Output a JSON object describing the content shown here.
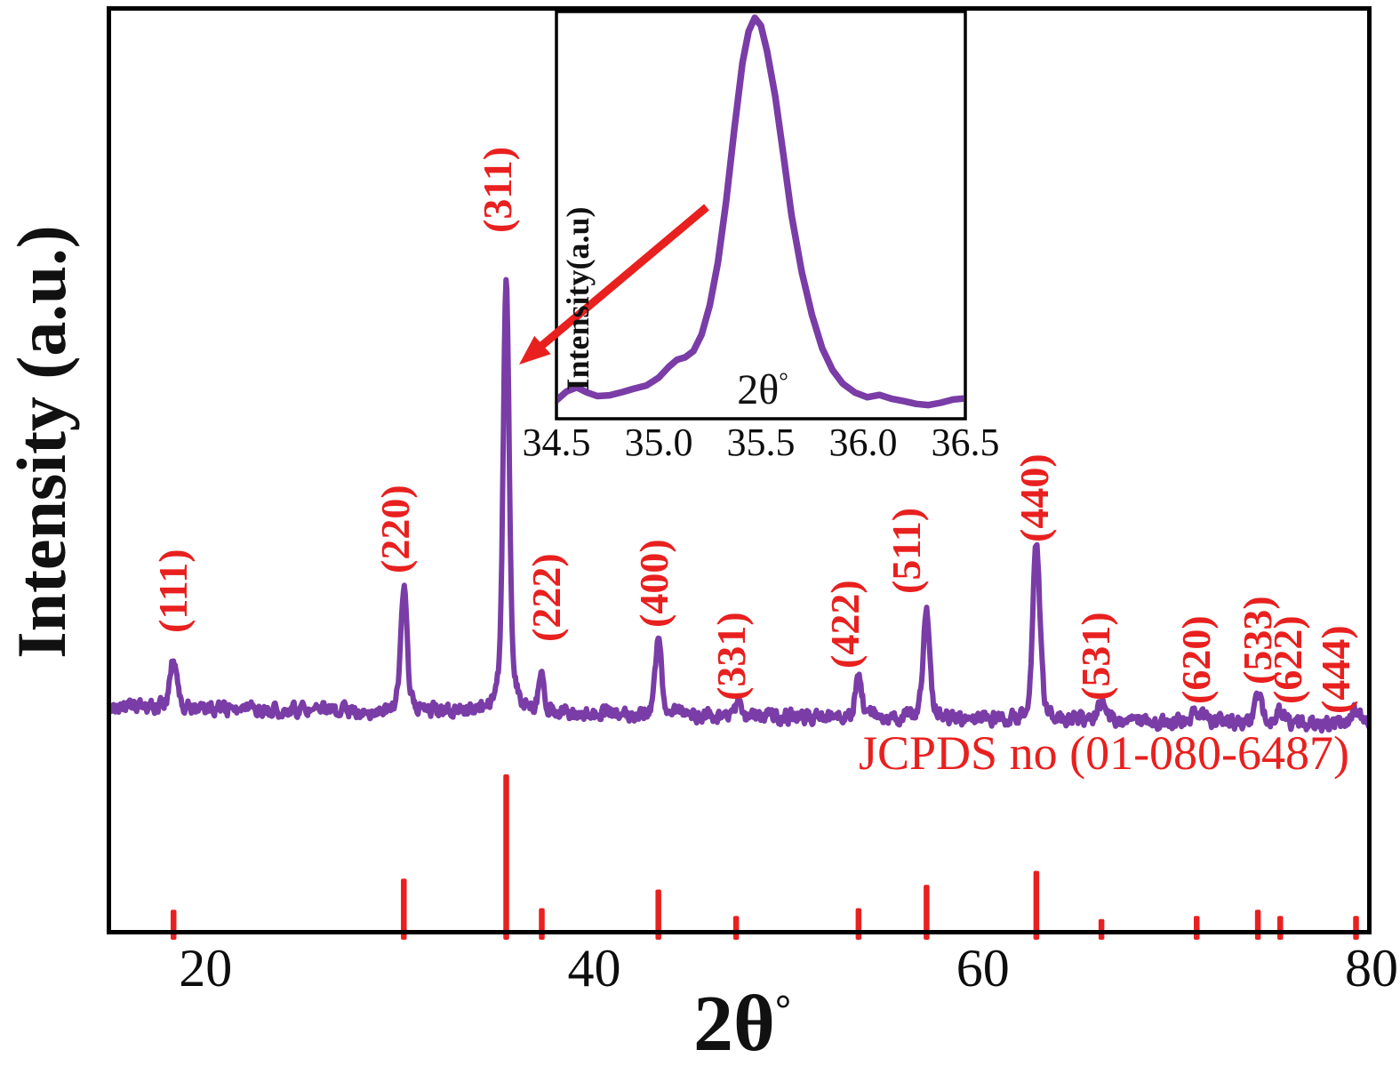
{
  "chart_data": {
    "type": "line",
    "description": "XRD powder diffraction pattern with indexed spinel peaks and JCPDS reference stick pattern",
    "ylabel": "Intensity (a.u.)",
    "xlabel": "2θ",
    "degree": "°",
    "x_range": [
      15,
      80
    ],
    "grid": false,
    "x_ticks": [
      {
        "value": 20,
        "label": "20"
      },
      {
        "value": 40,
        "label": "40"
      },
      {
        "value": 60,
        "label": "60"
      },
      {
        "value": 80,
        "label": "80"
      }
    ],
    "reference_label": "JCPDS no (01-080-6487)",
    "colors": {
      "trace": "#7a3ca6",
      "reference": "#e8201f",
      "frame": "#000000"
    },
    "peaks": [
      {
        "hkl": "(111)",
        "two_theta": 18.35,
        "sample_intensity": 11.5,
        "ref_intensity": 13
      },
      {
        "hkl": "(220)",
        "two_theta": 30.2,
        "sample_intensity": 28.0,
        "ref_intensity": 33
      },
      {
        "hkl": "(311)",
        "two_theta": 35.47,
        "sample_intensity": 100.0,
        "ref_intensity": 100
      },
      {
        "hkl": "(222)",
        "two_theta": 37.3,
        "sample_intensity": 9.5,
        "ref_intensity": 14
      },
      {
        "hkl": "(400)",
        "two_theta": 43.3,
        "sample_intensity": 17.5,
        "ref_intensity": 26
      },
      {
        "hkl": "(331)",
        "two_theta": 47.3,
        "sample_intensity": 2.5,
        "ref_intensity": 9
      },
      {
        "hkl": "(422)",
        "two_theta": 53.6,
        "sample_intensity": 10.0,
        "ref_intensity": 14
      },
      {
        "hkl": "(511)",
        "two_theta": 57.1,
        "sample_intensity": 25.0,
        "ref_intensity": 29
      },
      {
        "hkl": "(440)",
        "two_theta": 62.75,
        "sample_intensity": 40.0,
        "ref_intensity": 38
      },
      {
        "hkl": "(531)",
        "two_theta": 66.1,
        "sample_intensity": 4.0,
        "ref_intensity": 7
      },
      {
        "hkl": "(620)",
        "two_theta": 71.0,
        "sample_intensity": 2.5,
        "ref_intensity": 9
      },
      {
        "hkl": "(533)",
        "two_theta": 74.15,
        "sample_intensity": 7.0,
        "ref_intensity": 13
      },
      {
        "hkl": "(622)",
        "two_theta": 75.3,
        "sample_intensity": 3.2,
        "ref_intensity": 9
      },
      {
        "hkl": "(444)",
        "two_theta": 79.2,
        "sample_intensity": 3.0,
        "ref_intensity": 9
      }
    ],
    "inset": {
      "magnified_peak": "(311)",
      "ylabel": "Intensity(a.u)",
      "xlabel": "2θ",
      "degree": "°",
      "x_range": [
        34.5,
        36.5
      ],
      "x_ticks": [
        {
          "value": 34.5,
          "label": "34.5"
        },
        {
          "value": 35.0,
          "label": "35.0"
        },
        {
          "value": 35.5,
          "label": "35.5"
        },
        {
          "value": 36.0,
          "label": "36.0"
        },
        {
          "value": 36.5,
          "label": "36.5"
        }
      ],
      "curve": {
        "x": [
          34.5,
          34.55,
          34.6,
          34.65,
          34.7,
          34.76,
          34.82,
          34.88,
          34.94,
          35.0,
          35.05,
          35.09,
          35.13,
          35.17,
          35.21,
          35.25,
          35.29,
          35.33,
          35.37,
          35.41,
          35.44,
          35.47,
          35.5,
          35.53,
          35.57,
          35.61,
          35.65,
          35.7,
          35.75,
          35.8,
          35.85,
          35.9,
          35.96,
          36.02,
          36.08,
          36.14,
          36.2,
          36.26,
          36.32,
          36.38,
          36.44,
          36.5
        ],
        "y": [
          2.2,
          4.5,
          5.5,
          4.2,
          3.3,
          3.5,
          4.3,
          5.2,
          6.0,
          8.0,
          10.8,
          12.6,
          13.2,
          14.8,
          19.0,
          26.5,
          37.5,
          53.0,
          71.5,
          88.5,
          96.5,
          100.0,
          98.0,
          91.5,
          80.0,
          65.0,
          49.5,
          35.0,
          24.0,
          15.5,
          10.0,
          6.5,
          4.2,
          3.0,
          3.6,
          2.6,
          2.0,
          1.3,
          1.0,
          1.6,
          2.4,
          2.7
        ]
      }
    }
  }
}
